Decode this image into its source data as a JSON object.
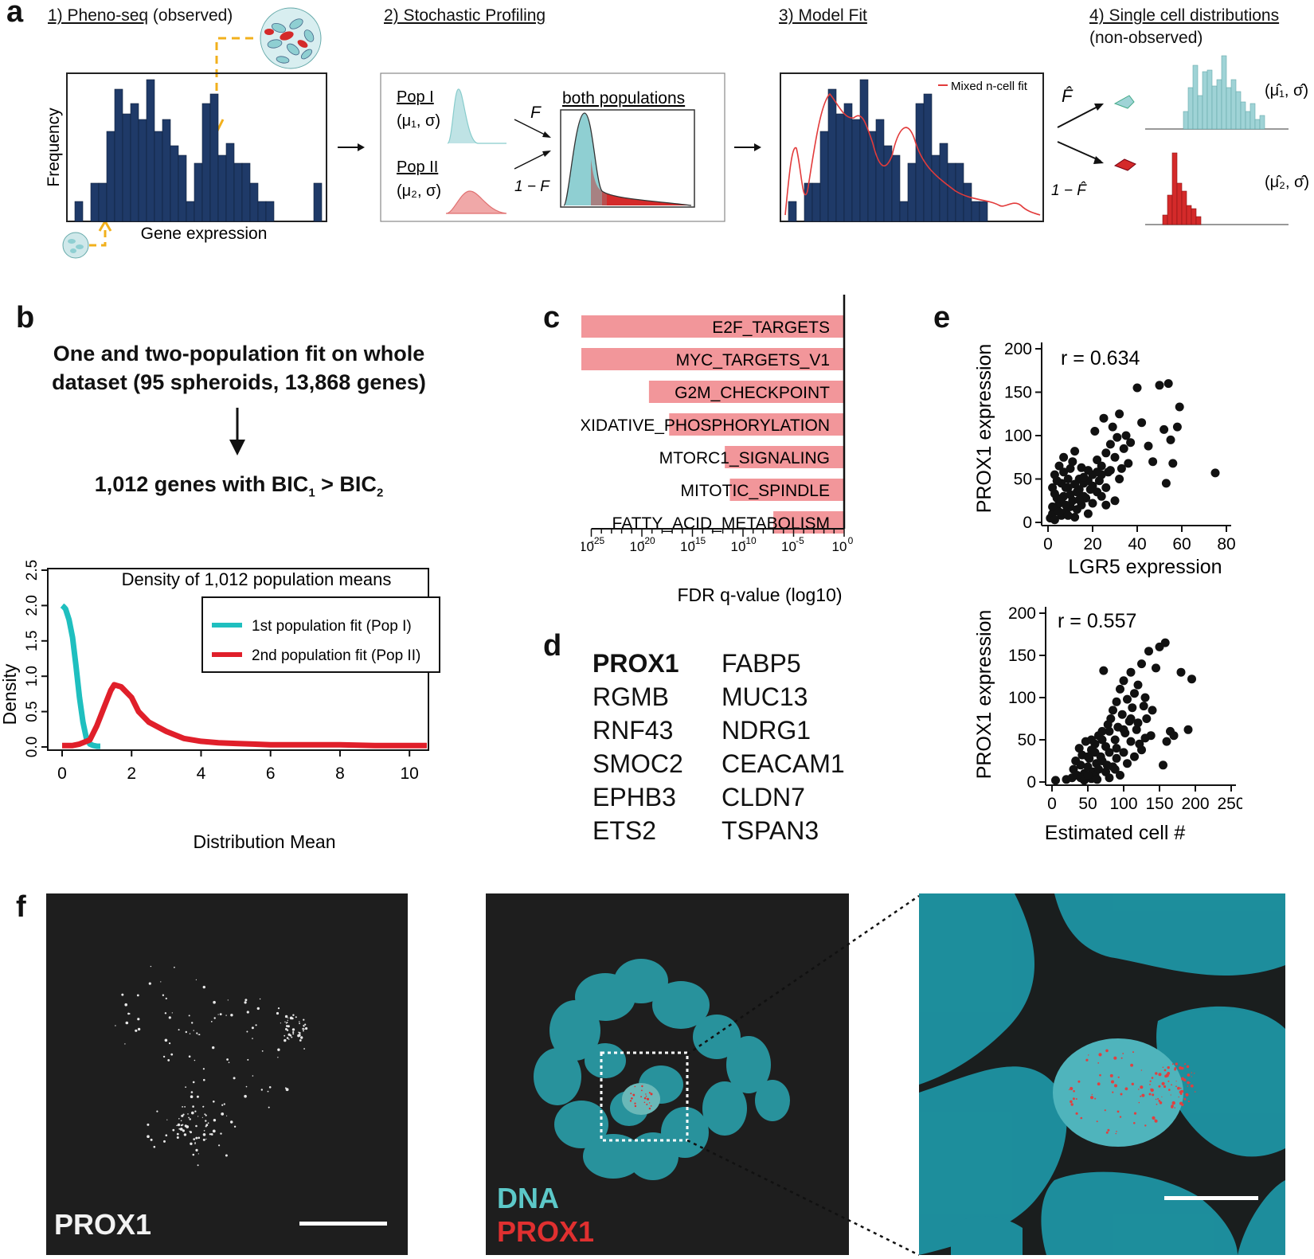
{
  "panels": {
    "a": "a",
    "b": "b",
    "c": "c",
    "d": "d",
    "e": "e",
    "f": "f"
  },
  "panel_a": {
    "step1": "1) Pheno-seq",
    "step1_suffix": " (observed)",
    "step2": "2) Stochastic Profiling",
    "step3": "3) Model Fit",
    "step4": "4) Single cell distributions",
    "step4_sub": "(non-observed)",
    "ylabel": "Frequency",
    "xlabel": "Gene expression",
    "pop1_label": "Pop I",
    "pop1_params": "(μ₁, σ)",
    "pop2_label": "Pop II",
    "pop2_params": "(μ₂, σ)",
    "both_label": "both populations",
    "f_label": "F",
    "one_minus_f": "1 − F",
    "fit_legend": "Mixed n-cell fit",
    "fhat": "F̂",
    "one_minus_fhat": "1 − F̂",
    "est1": "(μ̂₁, σ̂)",
    "est2": "(μ̂₂, σ̂)",
    "colors": {
      "navy": "#1f3a68",
      "teal": "#9fd3d6",
      "red": "#d42a2a",
      "fitline": "#e23b3b"
    }
  },
  "panel_b": {
    "line1": "One and two-population fit on whole",
    "line2": "dataset (95 spheroids, 13,868 genes)",
    "result_prefix": "1,012 genes with BIC",
    "result_sub1": "1",
    "result_mid": " > BIC",
    "result_sub2": "2"
  },
  "panel_d": {
    "highlight": "PROX1",
    "col1": [
      "RGMB",
      "RNF43",
      "SMOC2",
      "EPHB3",
      "ETS2"
    ],
    "col2": [
      "FABP5",
      "MUC13",
      "NDRG1",
      "CEACAM1",
      "CLDN7",
      "TSPAN3"
    ]
  },
  "panel_f": {
    "left_label": "PROX1",
    "dna_label": "DNA",
    "prox1_label": "PROX1",
    "colors": {
      "dna": "#5cc8c8",
      "prox1": "#e03030"
    }
  },
  "chart_data": [
    {
      "id": "b-density",
      "type": "line",
      "title": "Density of 1,012 population means",
      "xlabel": "Distribution Mean",
      "ylabel": "Density",
      "xlim": [
        0,
        10.5
      ],
      "ylim": [
        0,
        2.5
      ],
      "xticks": [
        0,
        2,
        4,
        6,
        8,
        10
      ],
      "yticks": [
        0.0,
        0.5,
        1.0,
        1.5,
        2.0,
        2.5
      ],
      "xtick_labels": [
        "0",
        "2",
        "4",
        "6",
        "8",
        "10"
      ],
      "ytick_labels": [
        "0.0",
        "0.5",
        "1.0",
        "1.5",
        "2.0",
        "2.5"
      ],
      "legend": "top-right",
      "series": [
        {
          "name": "1st population fit (Pop I)",
          "color": "#1fbfbf",
          "x": [
            0,
            0.05,
            0.1,
            0.2,
            0.3,
            0.4,
            0.5,
            0.6,
            0.7,
            0.8,
            0.9,
            1.0,
            1.1
          ],
          "y": [
            2.0,
            1.98,
            1.95,
            1.8,
            1.55,
            1.15,
            0.7,
            0.35,
            0.12,
            0.04,
            0.02,
            0.01,
            0.01
          ]
        },
        {
          "name": "2nd population fit (Pop II)",
          "color": "#e01f2a",
          "x": [
            0,
            0.3,
            0.5,
            0.8,
            1.0,
            1.2,
            1.4,
            1.5,
            1.7,
            2.0,
            2.2,
            2.5,
            3.0,
            3.5,
            4.0,
            4.5,
            5.0,
            5.5,
            6.0,
            7.0,
            8.0,
            9.0,
            10.0,
            10.5
          ],
          "y": [
            0.02,
            0.02,
            0.04,
            0.1,
            0.3,
            0.55,
            0.8,
            0.88,
            0.85,
            0.7,
            0.5,
            0.35,
            0.22,
            0.12,
            0.08,
            0.06,
            0.05,
            0.04,
            0.03,
            0.03,
            0.03,
            0.02,
            0.02,
            0.02
          ]
        }
      ]
    },
    {
      "id": "c-fdr",
      "type": "bar",
      "orientation": "horizontal",
      "xlabel": "FDR q-value (log10)",
      "xlim": [
        -26,
        0
      ],
      "xticks": [
        -25,
        -20,
        -15,
        -10,
        -5,
        0
      ],
      "xtick_bases": [
        "10",
        "10",
        "10",
        "10",
        "10",
        "10"
      ],
      "xtick_exps": [
        "-25",
        "-20",
        "-15",
        "-10",
        "-5",
        "0"
      ],
      "bar_color": "#f2969a",
      "categories": [
        "E2F_TARGETS",
        "MYC_TARGETS_V1",
        "G2M_CHECKPOINT",
        "OXIDATIVE_PHOSPHORYLATION",
        "MTORC1_SIGNALING",
        "MITOTIC_SPINDLE",
        "FATTY_ACID_METABOLISM"
      ],
      "values": [
        -26,
        -26,
        -19.3,
        -17.3,
        -11.8,
        -11.3,
        -7.0
      ]
    },
    {
      "id": "e-top",
      "type": "scatter",
      "xlabel": "LGR5 expression",
      "ylabel": "PROX1 expression",
      "annotation": "r = 0.634",
      "xlim": [
        0,
        80
      ],
      "ylim": [
        0,
        200
      ],
      "xticks": [
        0,
        20,
        40,
        60,
        80
      ],
      "yticks": [
        0,
        50,
        100,
        150,
        200
      ],
      "xtick_labels": [
        "0",
        "20",
        "40",
        "60",
        "80"
      ],
      "ytick_labels": [
        "0",
        "50",
        "100",
        "150",
        "200"
      ],
      "points": [
        [
          1,
          5
        ],
        [
          2,
          10
        ],
        [
          3,
          3
        ],
        [
          4,
          15
        ],
        [
          5,
          22
        ],
        [
          6,
          8
        ],
        [
          7,
          30
        ],
        [
          8,
          12
        ],
        [
          9,
          40
        ],
        [
          10,
          18
        ],
        [
          11,
          25
        ],
        [
          12,
          6
        ],
        [
          13,
          35
        ],
        [
          14,
          50
        ],
        [
          15,
          20
        ],
        [
          16,
          45
        ],
        [
          17,
          28
        ],
        [
          18,
          60
        ],
        [
          19,
          38
        ],
        [
          20,
          55
        ],
        [
          21,
          105
        ],
        [
          22,
          72
        ],
        [
          23,
          48
        ],
        [
          24,
          65
        ],
        [
          25,
          120
        ],
        [
          26,
          80
        ],
        [
          27,
          58
        ],
        [
          28,
          90
        ],
        [
          29,
          110
        ],
        [
          30,
          75
        ],
        [
          31,
          98
        ],
        [
          32,
          125
        ],
        [
          33,
          62
        ],
        [
          34,
          85
        ],
        [
          35,
          100
        ],
        [
          36,
          68
        ],
        [
          37,
          92
        ],
        [
          40,
          155
        ],
        [
          42,
          115
        ],
        [
          45,
          88
        ],
        [
          47,
          70
        ],
        [
          50,
          158
        ],
        [
          52,
          107
        ],
        [
          53,
          45
        ],
        [
          54,
          160
        ],
        [
          55,
          95
        ],
        [
          56,
          68
        ],
        [
          58,
          110
        ],
        [
          59,
          133
        ],
        [
          75,
          57
        ],
        [
          2,
          40
        ],
        [
          3,
          55
        ],
        [
          4,
          28
        ],
        [
          5,
          65
        ],
        [
          6,
          45
        ],
        [
          7,
          75
        ],
        [
          8,
          20
        ],
        [
          9,
          50
        ],
        [
          10,
          62
        ],
        [
          12,
          82
        ],
        [
          14,
          38
        ],
        [
          16,
          30
        ],
        [
          18,
          48
        ],
        [
          20,
          22
        ],
        [
          22,
          35
        ],
        [
          24,
          55
        ],
        [
          26,
          40
        ],
        [
          28,
          60
        ],
        [
          30,
          25
        ],
        [
          32,
          50
        ],
        [
          2,
          18
        ],
        [
          3,
          33
        ],
        [
          4,
          48
        ],
        [
          5,
          12
        ],
        [
          6,
          27
        ],
        [
          7,
          58
        ],
        [
          8,
          40
        ],
        [
          9,
          8
        ],
        [
          10,
          32
        ],
        [
          11,
          70
        ],
        [
          12,
          44
        ],
        [
          13,
          15
        ],
        [
          14,
          26
        ],
        [
          15,
          63
        ],
        [
          16,
          52
        ],
        [
          18,
          10
        ],
        [
          20,
          42
        ],
        [
          22,
          58
        ],
        [
          24,
          30
        ],
        [
          26,
          20
        ]
      ]
    },
    {
      "id": "e-bottom",
      "type": "scatter",
      "xlabel": "Estimated cell #",
      "ylabel": "PROX1 expression",
      "annotation": "r = 0.557",
      "xlim": [
        0,
        250
      ],
      "ylim": [
        0,
        200
      ],
      "xticks": [
        0,
        50,
        100,
        150,
        200,
        250
      ],
      "yticks": [
        0,
        50,
        100,
        150,
        200
      ],
      "xtick_labels": [
        "0",
        "50",
        "100",
        "150",
        "200",
        "250"
      ],
      "ytick_labels": [
        "0",
        "50",
        "100",
        "150",
        "200"
      ],
      "points": [
        [
          5,
          2
        ],
        [
          20,
          3
        ],
        [
          28,
          5
        ],
        [
          30,
          15
        ],
        [
          33,
          25
        ],
        [
          35,
          8
        ],
        [
          38,
          40
        ],
        [
          40,
          20
        ],
        [
          42,
          32
        ],
        [
          45,
          10
        ],
        [
          47,
          48
        ],
        [
          50,
          18
        ],
        [
          52,
          28
        ],
        [
          55,
          38
        ],
        [
          57,
          12
        ],
        [
          60,
          45
        ],
        [
          62,
          22
        ],
        [
          65,
          55
        ],
        [
          68,
          30
        ],
        [
          70,
          60
        ],
        [
          72,
          132
        ],
        [
          75,
          42
        ],
        [
          78,
          68
        ],
        [
          80,
          35
        ],
        [
          82,
          75
        ],
        [
          85,
          85
        ],
        [
          88,
          50
        ],
        [
          90,
          95
        ],
        [
          92,
          65
        ],
        [
          95,
          110
        ],
        [
          98,
          80
        ],
        [
          100,
          120
        ],
        [
          102,
          58
        ],
        [
          105,
          98
        ],
        [
          108,
          72
        ],
        [
          110,
          130
        ],
        [
          112,
          88
        ],
        [
          115,
          105
        ],
        [
          118,
          62
        ],
        [
          120,
          115
        ],
        [
          122,
          45
        ],
        [
          125,
          140
        ],
        [
          128,
          90
        ],
        [
          130,
          100
        ],
        [
          132,
          75
        ],
        [
          135,
          155
        ],
        [
          138,
          55
        ],
        [
          140,
          85
        ],
        [
          145,
          135
        ],
        [
          150,
          160
        ],
        [
          155,
          20
        ],
        [
          158,
          165
        ],
        [
          160,
          48
        ],
        [
          165,
          60
        ],
        [
          170,
          55
        ],
        [
          180,
          130
        ],
        [
          190,
          62
        ],
        [
          195,
          122
        ],
        [
          40,
          5
        ],
        [
          45,
          2
        ],
        [
          50,
          30
        ],
        [
          55,
          4
        ],
        [
          60,
          8
        ],
        [
          65,
          15
        ],
        [
          70,
          25
        ],
        [
          75,
          12
        ],
        [
          80,
          5
        ],
        [
          85,
          18
        ],
        [
          90,
          28
        ],
        [
          95,
          8
        ],
        [
          100,
          35
        ],
        [
          105,
          22
        ],
        [
          110,
          48
        ],
        [
          115,
          30
        ],
        [
          120,
          70
        ],
        [
          125,
          38
        ],
        [
          130,
          52
        ],
        [
          60,
          35
        ],
        [
          70,
          50
        ],
        [
          80,
          60
        ],
        [
          90,
          40
        ],
        [
          100,
          62
        ],
        [
          110,
          75
        ],
        [
          50,
          8
        ],
        [
          55,
          50
        ],
        [
          63,
          3
        ],
        [
          77,
          20
        ],
        [
          88,
          15
        ]
      ]
    }
  ]
}
